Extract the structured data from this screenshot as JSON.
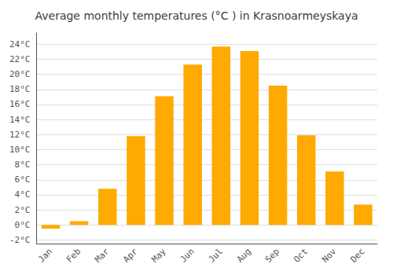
{
  "chart_data": {
    "type": "bar",
    "title": "Average monthly temperatures (°C ) in Krasnoarmeyskaya",
    "categories": [
      "Jan",
      "Feb",
      "Mar",
      "Apr",
      "May",
      "Jun",
      "Jul",
      "Aug",
      "Sep",
      "Oct",
      "Nov",
      "Dec"
    ],
    "values": [
      -0.5,
      0.5,
      4.8,
      11.8,
      17.1,
      21.3,
      23.7,
      23.1,
      18.5,
      11.9,
      7.1,
      2.7
    ],
    "color": "#FFAA00",
    "ylim": [
      -2.5,
      25.5
    ],
    "yticks": [
      {
        "value": -2,
        "label": "-2°C"
      },
      {
        "value": 0,
        "label": "0°C"
      },
      {
        "value": 2,
        "label": "2°C"
      },
      {
        "value": 4,
        "label": "4°C"
      },
      {
        "value": 6,
        "label": "6°C"
      },
      {
        "value": 8,
        "label": "8°C"
      },
      {
        "value": 10,
        "label": "10°C"
      },
      {
        "value": 12,
        "label": "12°C"
      },
      {
        "value": 14,
        "label": "14°C"
      },
      {
        "value": 16,
        "label": "16°C"
      },
      {
        "value": 18,
        "label": "18°C"
      },
      {
        "value": 20,
        "label": "20°C"
      },
      {
        "value": 22,
        "label": "22°C"
      },
      {
        "value": 24,
        "label": "24°C"
      }
    ],
    "grid": true
  }
}
